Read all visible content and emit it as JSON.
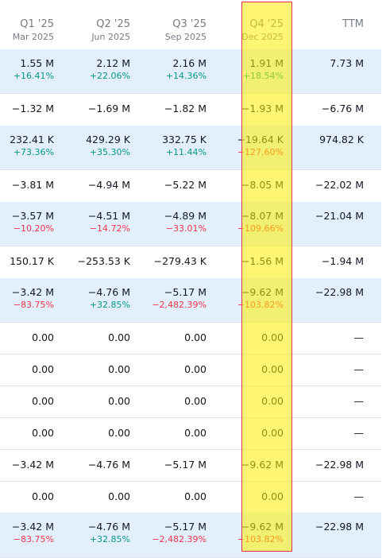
{
  "columns": [
    {
      "quarter": "Q1 '25",
      "date": "Mar 2025"
    },
    {
      "quarter": "Q2 '25",
      "date": "Jun 2025"
    },
    {
      "quarter": "Q3 '25",
      "date": "Sep 2025"
    },
    {
      "quarter": "Q4 '25",
      "date": "Dec 2025"
    },
    {
      "quarter": "TTM",
      "date": ""
    }
  ],
  "rows": [
    {
      "shaded": true,
      "values": [
        "1.55 M",
        "2.12 M",
        "2.16 M",
        "1.91 M",
        "7.73 M"
      ],
      "pcts": [
        "+16.41%",
        "+22.06%",
        "+14.36%",
        "+18.54%",
        ""
      ],
      "pct_dirs": [
        "pos",
        "pos",
        "pos",
        "pos",
        ""
      ]
    },
    {
      "shaded": false,
      "values": [
        "−1.32 M",
        "−1.69 M",
        "−1.82 M",
        "−1.93 M",
        "−6.76 M"
      ],
      "pcts": [
        "",
        "",
        "",
        "",
        ""
      ],
      "pct_dirs": [
        "",
        "",
        "",
        "",
        ""
      ]
    },
    {
      "shaded": true,
      "values": [
        "232.41 K",
        "429.29 K",
        "332.75 K",
        "−19.64 K",
        "974.82 K"
      ],
      "pcts": [
        "+73.36%",
        "+35.30%",
        "+11.44%",
        "−127.60%",
        ""
      ],
      "pct_dirs": [
        "pos",
        "pos",
        "pos",
        "neg",
        ""
      ]
    },
    {
      "shaded": false,
      "values": [
        "−3.81 M",
        "−4.94 M",
        "−5.22 M",
        "−8.05 M",
        "−22.02 M"
      ],
      "pcts": [
        "",
        "",
        "",
        "",
        ""
      ],
      "pct_dirs": [
        "",
        "",
        "",
        "",
        ""
      ]
    },
    {
      "shaded": true,
      "values": [
        "−3.57 M",
        "−4.51 M",
        "−4.89 M",
        "−8.07 M",
        "−21.04 M"
      ],
      "pcts": [
        "−10.20%",
        "−14.72%",
        "−33.01%",
        "−109.66%",
        ""
      ],
      "pct_dirs": [
        "neg",
        "neg",
        "neg",
        "neg",
        ""
      ]
    },
    {
      "shaded": false,
      "values": [
        "150.17 K",
        "−253.53 K",
        "−279.43 K",
        "−1.56 M",
        "−1.94 M"
      ],
      "pcts": [
        "",
        "",
        "",
        "",
        ""
      ],
      "pct_dirs": [
        "",
        "",
        "",
        "",
        ""
      ]
    },
    {
      "shaded": true,
      "values": [
        "−3.42 M",
        "−4.76 M",
        "−5.17 M",
        "−9.62 M",
        "−22.98 M"
      ],
      "pcts": [
        "−83.75%",
        "+32.85%",
        "−2,482.39%",
        "−103.82%",
        ""
      ],
      "pct_dirs": [
        "neg",
        "pos",
        "neg",
        "neg",
        ""
      ]
    },
    {
      "shaded": false,
      "values": [
        "0.00",
        "0.00",
        "0.00",
        "0.00",
        "—"
      ],
      "pcts": [
        "",
        "",
        "",
        "",
        ""
      ],
      "pct_dirs": [
        "",
        "",
        "",
        "",
        ""
      ]
    },
    {
      "shaded": false,
      "values": [
        "0.00",
        "0.00",
        "0.00",
        "0.00",
        "—"
      ],
      "pcts": [
        "",
        "",
        "",
        "",
        ""
      ],
      "pct_dirs": [
        "",
        "",
        "",
        "",
        ""
      ]
    },
    {
      "shaded": false,
      "values": [
        "0.00",
        "0.00",
        "0.00",
        "0.00",
        "—"
      ],
      "pcts": [
        "",
        "",
        "",
        "",
        ""
      ],
      "pct_dirs": [
        "",
        "",
        "",
        "",
        ""
      ]
    },
    {
      "shaded": false,
      "values": [
        "0.00",
        "0.00",
        "0.00",
        "0.00",
        "—"
      ],
      "pcts": [
        "",
        "",
        "",
        "",
        ""
      ],
      "pct_dirs": [
        "",
        "",
        "",
        "",
        ""
      ]
    },
    {
      "shaded": false,
      "values": [
        "−3.42 M",
        "−4.76 M",
        "−5.17 M",
        "−9.62 M",
        "−22.98 M"
      ],
      "pcts": [
        "",
        "",
        "",
        "",
        ""
      ],
      "pct_dirs": [
        "",
        "",
        "",
        "",
        ""
      ]
    },
    {
      "shaded": false,
      "values": [
        "0.00",
        "0.00",
        "0.00",
        "0.00",
        "—"
      ],
      "pcts": [
        "",
        "",
        "",
        "",
        ""
      ],
      "pct_dirs": [
        "",
        "",
        "",
        "",
        ""
      ]
    },
    {
      "shaded": true,
      "values": [
        "−3.42 M",
        "−4.76 M",
        "−5.17 M",
        "−9.62 M",
        "−22.98 M"
      ],
      "pcts": [
        "−83.75%",
        "+32.85%",
        "−2,482.39%",
        "−103.82%",
        ""
      ],
      "pct_dirs": [
        "neg",
        "pos",
        "neg",
        "neg",
        ""
      ]
    }
  ],
  "colors": {
    "positive": "#089981",
    "negative": "#f23645",
    "shaded_row": "#e3effd",
    "highlight": "#fff100",
    "highlight_border": "#e0305a"
  }
}
